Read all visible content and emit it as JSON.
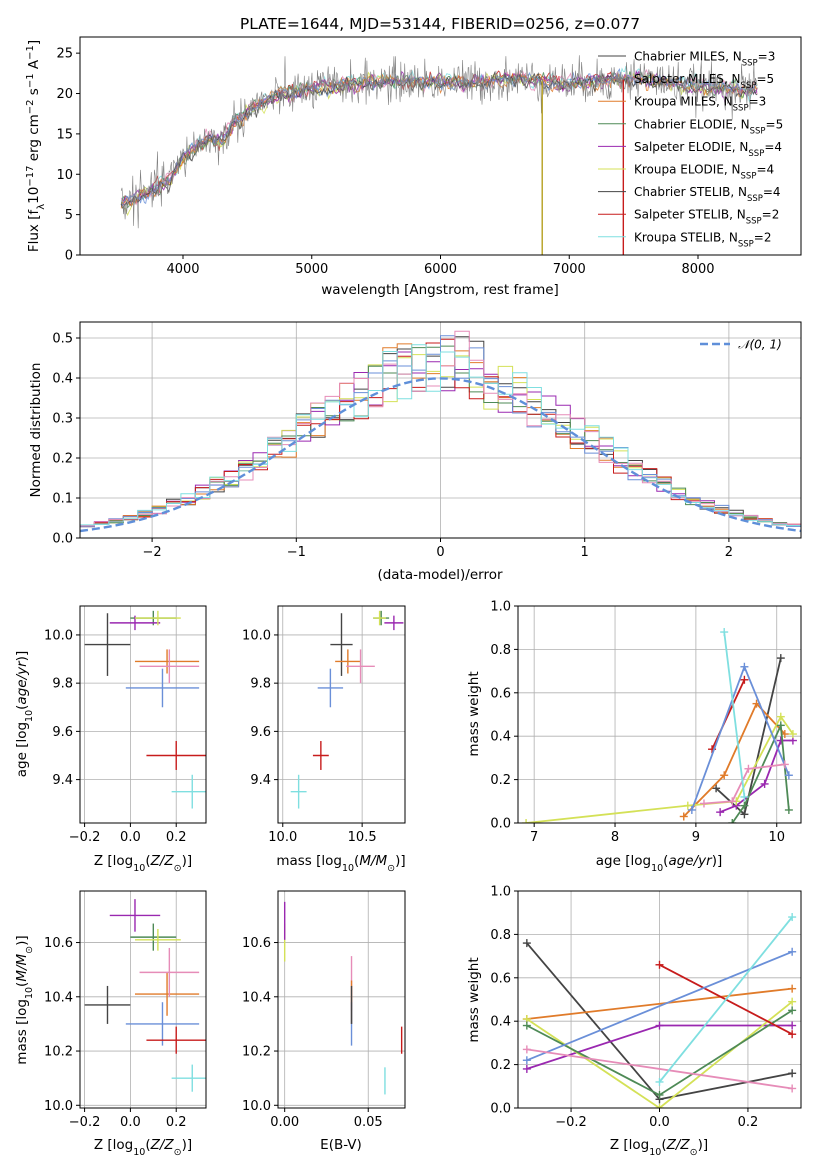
{
  "title": "PLATE=1644, MJD=53144, FIBERID=0256, z=0.077",
  "colors": {
    "grid": "#b0b0b0",
    "norm": "#5f8fd9",
    "models": [
      "#444444",
      "#e07b2a",
      "#9a28b0",
      "#d4e157",
      "#4e8a56",
      "#c71c1c",
      "#6a8fd8",
      "#e68cb8",
      "#7fdfe0"
    ]
  },
  "legend_entries": [
    "Chabrier MILES, N_SSP=3",
    "Salpeter MILES, N_SSP=5",
    "Kroupa MILES, N_SSP=3",
    "Chabrier ELODIE, N_SSP=5",
    "Salpeter ELODIE, N_SSP=4",
    "Kroupa ELODIE, N_SSP=4",
    "Chabrier STELIB, N_SSP=4",
    "Salpeter STELIB, N_SSP=2",
    "Kroupa STELIB, N_SSP=2"
  ],
  "chart_data": [
    {
      "id": "spectrum",
      "type": "line",
      "title": "PLATE=1644, MJD=53144, FIBERID=0256, z=0.077",
      "xlabel": "wavelength [Angstrom, rest frame]",
      "ylabel": "Flux [f_λ10^-17 erg cm^-2 s^-1 A^-1]",
      "xlim": [
        3200,
        8800
      ],
      "ylim": [
        0,
        27
      ],
      "xticks": [
        4000,
        5000,
        6000,
        7000,
        8000
      ],
      "yticks": [
        0,
        5,
        10,
        15,
        20,
        25
      ],
      "continuum": {
        "x": [
          3500,
          3600,
          3700,
          3800,
          3900,
          4000,
          4100,
          4200,
          4300,
          4400,
          4500,
          4600,
          4800,
          5000,
          5200,
          5400,
          5600,
          5800,
          6000,
          6200,
          6400,
          6600,
          6800,
          7000,
          7200,
          7400,
          7600,
          7800,
          8000,
          8200,
          8400
        ],
        "y": [
          6.5,
          6.8,
          7.5,
          8.5,
          9.5,
          12.0,
          13.5,
          14.5,
          14.0,
          16.5,
          17.8,
          18.8,
          20.0,
          20.5,
          21.0,
          21.3,
          21.5,
          21.5,
          21.4,
          21.3,
          21.6,
          21.8,
          21.5,
          21.3,
          21.5,
          21.7,
          22.0,
          21.2,
          20.9,
          20.7,
          20.4
        ]
      },
      "drops": [
        {
          "x": 6790,
          "color": "#b5a020"
        },
        {
          "x": 7420,
          "color": "#c71c1c"
        }
      ],
      "legend_position": "upper right"
    },
    {
      "id": "residuals",
      "type": "histogram",
      "xlabel": "(data-model)/error",
      "ylabel": "Normed distribution",
      "xlim": [
        -2.5,
        2.5
      ],
      "ylim": [
        0,
        0.54
      ],
      "xticks": [
        -2,
        -1,
        0,
        1,
        2
      ],
      "yticks": [
        0.0,
        0.1,
        0.2,
        0.3,
        0.4,
        0.5
      ],
      "bin_width": 0.1,
      "bin_start": -2.5,
      "reference_curve": {
        "name": "N(0,1)",
        "mean": 0,
        "sigma": 1,
        "style": "dashed"
      },
      "legend_position": "upper right"
    },
    {
      "id": "age-vs-Z",
      "type": "errorbar",
      "xlabel": "Z [log10(Z/Z⊙)]",
      "ylabel": "age  [log10(age/yr)]",
      "xlim": [
        -0.22,
        0.33
      ],
      "ylim": [
        9.22,
        10.12
      ],
      "xticks": [
        -0.2,
        0.0,
        0.2
      ],
      "yticks": [
        9.4,
        9.6,
        9.8,
        10.0
      ],
      "points": [
        {
          "x": -0.1,
          "y": 9.96,
          "xerr": 0.1,
          "yerr": 0.13,
          "color": "#444444"
        },
        {
          "x": 0.1,
          "y": 10.07,
          "xerr": 0.1,
          "yerr": 0.03,
          "color": "#4e8a56"
        },
        {
          "x": 0.02,
          "y": 10.05,
          "xerr": 0.11,
          "yerr": 0.03,
          "color": "#9a28b0"
        },
        {
          "x": 0.12,
          "y": 10.07,
          "xerr": 0.1,
          "yerr": 0.03,
          "color": "#d4e157"
        },
        {
          "x": 0.16,
          "y": 9.89,
          "xerr": 0.14,
          "yerr": 0.05,
          "color": "#e07b2a"
        },
        {
          "x": 0.17,
          "y": 9.87,
          "xerr": 0.13,
          "yerr": 0.07,
          "color": "#e68cb8"
        },
        {
          "x": 0.14,
          "y": 9.78,
          "xerr": 0.16,
          "yerr": 0.08,
          "color": "#6a8fd8"
        },
        {
          "x": 0.2,
          "y": 9.5,
          "xerr": 0.13,
          "yerr": 0.06,
          "color": "#c71c1c"
        },
        {
          "x": 0.27,
          "y": 9.35,
          "xerr": 0.09,
          "yerr": 0.07,
          "color": "#7fdfe0"
        }
      ]
    },
    {
      "id": "age-vs-mass",
      "type": "errorbar",
      "xlabel": "mass [log10(M/M⊙)]",
      "ylabel": "",
      "xlim": [
        9.97,
        10.77
      ],
      "ylim": [
        9.22,
        10.12
      ],
      "xticks": [
        10.0,
        10.5
      ],
      "yticks": [
        9.4,
        9.6,
        9.8,
        10.0
      ],
      "points": [
        {
          "x": 10.37,
          "y": 9.96,
          "xerr": 0.07,
          "yerr": 0.13,
          "color": "#444444"
        },
        {
          "x": 10.62,
          "y": 10.07,
          "xerr": 0.05,
          "yerr": 0.03,
          "color": "#4e8a56"
        },
        {
          "x": 10.7,
          "y": 10.05,
          "xerr": 0.06,
          "yerr": 0.03,
          "color": "#9a28b0"
        },
        {
          "x": 10.61,
          "y": 10.07,
          "xerr": 0.04,
          "yerr": 0.03,
          "color": "#d4e157"
        },
        {
          "x": 10.41,
          "y": 9.89,
          "xerr": 0.08,
          "yerr": 0.05,
          "color": "#e07b2a"
        },
        {
          "x": 10.49,
          "y": 9.87,
          "xerr": 0.09,
          "yerr": 0.07,
          "color": "#e68cb8"
        },
        {
          "x": 10.3,
          "y": 9.78,
          "xerr": 0.08,
          "yerr": 0.08,
          "color": "#6a8fd8"
        },
        {
          "x": 10.24,
          "y": 9.5,
          "xerr": 0.05,
          "yerr": 0.06,
          "color": "#c71c1c"
        },
        {
          "x": 10.1,
          "y": 9.35,
          "xerr": 0.05,
          "yerr": 0.07,
          "color": "#7fdfe0"
        }
      ]
    },
    {
      "id": "weight-vs-age",
      "type": "line",
      "xlabel": "age  [log10(age/yr)]",
      "ylabel": "mass weight",
      "xlim": [
        6.8,
        10.3
      ],
      "ylim": [
        0,
        1
      ],
      "xticks": [
        7,
        8,
        9,
        10
      ],
      "yticks": [
        0.0,
        0.2,
        0.4,
        0.6,
        0.8,
        1.0
      ],
      "series": [
        {
          "color": "#444444",
          "x": [
            9.25,
            9.6,
            10.05
          ],
          "y": [
            0.16,
            0.04,
            0.76
          ]
        },
        {
          "color": "#e07b2a",
          "x": [
            8.85,
            9.35,
            9.75,
            10.1
          ],
          "y": [
            0.03,
            0.22,
            0.55,
            0.41
          ]
        },
        {
          "color": "#9a28b0",
          "x": [
            9.3,
            9.5,
            9.85,
            10.05,
            10.2
          ],
          "y": [
            0.05,
            0.08,
            0.18,
            0.38,
            0.38
          ]
        },
        {
          "color": "#d4e157",
          "x": [
            6.9,
            8.9,
            9.5,
            10.05,
            10.2
          ],
          "y": [
            0.0,
            0.08,
            0.1,
            0.49,
            0.41
          ]
        },
        {
          "color": "#4e8a56",
          "x": [
            9.45,
            9.6,
            10.05,
            10.15
          ],
          "y": [
            0.0,
            0.08,
            0.45,
            0.06
          ]
        },
        {
          "color": "#c71c1c",
          "x": [
            9.2,
            9.6
          ],
          "y": [
            0.34,
            0.66
          ]
        },
        {
          "color": "#6a8fd8",
          "x": [
            8.95,
            9.6,
            10.15
          ],
          "y": [
            0.06,
            0.72,
            0.22
          ]
        },
        {
          "color": "#e68cb8",
          "x": [
            9.1,
            9.45,
            9.65,
            10.1
          ],
          "y": [
            0.09,
            0.1,
            0.25,
            0.27
          ]
        },
        {
          "color": "#7fdfe0",
          "x": [
            9.35,
            9.6
          ],
          "y": [
            0.88,
            0.12
          ]
        }
      ]
    },
    {
      "id": "mass-vs-Z",
      "type": "errorbar",
      "xlabel": "Z [log10(Z/Z⊙)]",
      "ylabel": "mass [log10(M/M⊙)]",
      "xlim": [
        -0.22,
        0.33
      ],
      "ylim": [
        9.99,
        10.79
      ],
      "xticks": [
        -0.2,
        0.0,
        0.2
      ],
      "yticks": [
        10.0,
        10.2,
        10.4,
        10.6
      ],
      "points": [
        {
          "x": -0.1,
          "y": 10.37,
          "xerr": 0.1,
          "yerr": 0.07,
          "color": "#444444"
        },
        {
          "x": 0.1,
          "y": 10.62,
          "xerr": 0.1,
          "yerr": 0.05,
          "color": "#4e8a56"
        },
        {
          "x": 0.02,
          "y": 10.7,
          "xerr": 0.11,
          "yerr": 0.06,
          "color": "#9a28b0"
        },
        {
          "x": 0.12,
          "y": 10.61,
          "xerr": 0.1,
          "yerr": 0.04,
          "color": "#d4e157"
        },
        {
          "x": 0.16,
          "y": 10.41,
          "xerr": 0.14,
          "yerr": 0.08,
          "color": "#e07b2a"
        },
        {
          "x": 0.17,
          "y": 10.49,
          "xerr": 0.13,
          "yerr": 0.09,
          "color": "#e68cb8"
        },
        {
          "x": 0.14,
          "y": 10.3,
          "xerr": 0.16,
          "yerr": 0.08,
          "color": "#6a8fd8"
        },
        {
          "x": 0.2,
          "y": 10.24,
          "xerr": 0.13,
          "yerr": 0.05,
          "color": "#c71c1c"
        },
        {
          "x": 0.27,
          "y": 10.1,
          "xerr": 0.09,
          "yerr": 0.05,
          "color": "#7fdfe0"
        }
      ]
    },
    {
      "id": "mass-vs-EBV",
      "type": "errorbar",
      "xlabel": "E(B-V)",
      "ylabel": "",
      "xlim": [
        -0.004,
        0.072
      ],
      "ylim": [
        9.99,
        10.79
      ],
      "xticks": [
        0.0,
        0.05
      ],
      "yticks": [
        10.0,
        10.2,
        10.4,
        10.6
      ],
      "points": [
        {
          "x": 0.0,
          "y": 10.6,
          "xerr": 0,
          "yerr": 0.07,
          "color": "#d4e157"
        },
        {
          "x": 0.0,
          "y": 10.68,
          "xerr": 0,
          "yerr": 0.07,
          "color": "#9a28b0"
        },
        {
          "x": 0.04,
          "y": 10.45,
          "xerr": 0,
          "yerr": 0.1,
          "color": "#e68cb8"
        },
        {
          "x": 0.04,
          "y": 10.38,
          "xerr": 0,
          "yerr": 0.08,
          "color": "#e07b2a"
        },
        {
          "x": 0.04,
          "y": 10.3,
          "xerr": 0,
          "yerr": 0.08,
          "color": "#6a8fd8"
        },
        {
          "x": 0.04,
          "y": 10.37,
          "xerr": 0,
          "yerr": 0.07,
          "color": "#444444"
        },
        {
          "x": 0.06,
          "y": 10.09,
          "xerr": 0,
          "yerr": 0.05,
          "color": "#7fdfe0"
        },
        {
          "x": 0.07,
          "y": 10.24,
          "xerr": 0,
          "yerr": 0.05,
          "color": "#c71c1c"
        }
      ]
    },
    {
      "id": "weight-vs-Z",
      "type": "line",
      "xlabel": "Z [log10(Z/Z⊙)]",
      "ylabel": "mass weight",
      "xlim": [
        -0.32,
        0.32
      ],
      "ylim": [
        0,
        1
      ],
      "xticks": [
        -0.2,
        0.0,
        0.2
      ],
      "yticks": [
        0.0,
        0.2,
        0.4,
        0.6,
        0.8,
        1.0
      ],
      "series": [
        {
          "color": "#444444",
          "x": [
            -0.3,
            0.0,
            0.3
          ],
          "y": [
            0.76,
            0.04,
            0.16
          ]
        },
        {
          "color": "#e07b2a",
          "x": [
            -0.3,
            0.3
          ],
          "y": [
            0.41,
            0.55
          ]
        },
        {
          "color": "#9a28b0",
          "x": [
            -0.3,
            0.0,
            0.3
          ],
          "y": [
            0.18,
            0.38,
            0.38
          ]
        },
        {
          "color": "#d4e157",
          "x": [
            -0.3,
            0.0,
            0.3
          ],
          "y": [
            0.41,
            0.0,
            0.49
          ]
        },
        {
          "color": "#4e8a56",
          "x": [
            -0.3,
            0.0,
            0.3
          ],
          "y": [
            0.38,
            0.06,
            0.45
          ]
        },
        {
          "color": "#c71c1c",
          "x": [
            0.0,
            0.3
          ],
          "y": [
            0.66,
            0.34
          ]
        },
        {
          "color": "#6a8fd8",
          "x": [
            -0.3,
            0.3
          ],
          "y": [
            0.22,
            0.72
          ]
        },
        {
          "color": "#e68cb8",
          "x": [
            -0.3,
            0.3
          ],
          "y": [
            0.27,
            0.09
          ]
        },
        {
          "color": "#7fdfe0",
          "x": [
            0.0,
            0.3
          ],
          "y": [
            0.12,
            0.88
          ]
        }
      ]
    }
  ]
}
